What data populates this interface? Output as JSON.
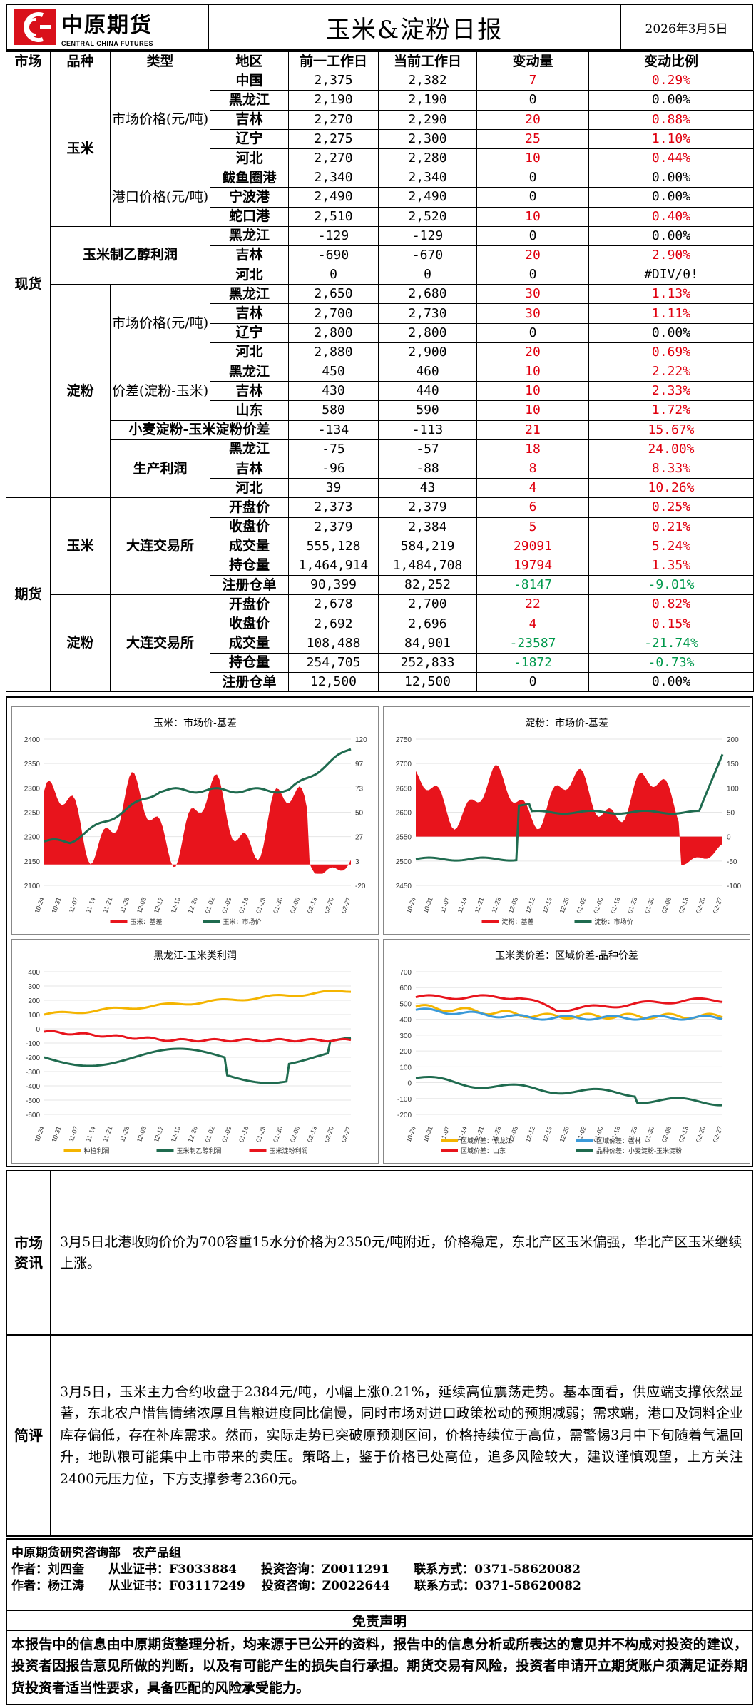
{
  "header": {
    "logo_cn": "中原期货",
    "logo_en": "CENTRAL CHINA FUTURES",
    "title": "玉米&淀粉日报",
    "date": "2026年3月5日"
  },
  "table_headers": [
    "市场",
    "品种",
    "类型",
    "地区",
    "前一工作日",
    "当前工作日",
    "变动量",
    "变动比例"
  ],
  "labels": {
    "spot": "现货",
    "futures": "期货",
    "corn": "玉米",
    "starch": "淀粉",
    "market_price": "市场价格(元/吨)",
    "port_price": "港口价格(元/吨)",
    "ethanol_profit": "玉米制乙醇利润",
    "starch_market_price": "市场价格(元/吨)",
    "price_spread": "价差(淀粉-玉米)",
    "wheat_spread": "小麦淀粉-玉米淀粉价差",
    "production_profit": "生产利润",
    "dce": "大连交易所",
    "dce2": "大连交易所"
  },
  "rows": [
    {
      "region": "中国",
      "prev": "2,375",
      "curr": "2,382",
      "chg": "7",
      "pct": "0.29%",
      "color": "red"
    },
    {
      "region": "黑龙江",
      "prev": "2,190",
      "curr": "2,190",
      "chg": "0",
      "pct": "0.00%",
      "color": "black"
    },
    {
      "region": "吉林",
      "prev": "2,270",
      "curr": "2,290",
      "chg": "20",
      "pct": "0.88%",
      "color": "red"
    },
    {
      "region": "辽宁",
      "prev": "2,275",
      "curr": "2,300",
      "chg": "25",
      "pct": "1.10%",
      "color": "red"
    },
    {
      "region": "河北",
      "prev": "2,270",
      "curr": "2,280",
      "chg": "10",
      "pct": "0.44%",
      "color": "red"
    },
    {
      "region": "鲅鱼圈港",
      "prev": "2,340",
      "curr": "2,340",
      "chg": "0",
      "pct": "0.00%",
      "color": "black"
    },
    {
      "region": "宁波港",
      "prev": "2,490",
      "curr": "2,490",
      "chg": "0",
      "pct": "0.00%",
      "color": "black"
    },
    {
      "region": "蛇口港",
      "prev": "2,510",
      "curr": "2,520",
      "chg": "10",
      "pct": "0.40%",
      "color": "red"
    },
    {
      "region": "黑龙江",
      "prev": "-129",
      "curr": "-129",
      "chg": "0",
      "pct": "0.00%",
      "color": "black"
    },
    {
      "region": "吉林",
      "prev": "-690",
      "curr": "-670",
      "chg": "20",
      "pct": "2.90%",
      "color": "red"
    },
    {
      "region": "河北",
      "prev": "0",
      "curr": "0",
      "chg": "0",
      "pct": "#DIV/0!",
      "color": "black"
    },
    {
      "region": "黑龙江",
      "prev": "2,650",
      "curr": "2,680",
      "chg": "30",
      "pct": "1.13%",
      "color": "red"
    },
    {
      "region": "吉林",
      "prev": "2,700",
      "curr": "2,730",
      "chg": "30",
      "pct": "1.11%",
      "color": "red"
    },
    {
      "region": "辽宁",
      "prev": "2,800",
      "curr": "2,800",
      "chg": "0",
      "pct": "0.00%",
      "color": "black"
    },
    {
      "region": "河北",
      "prev": "2,880",
      "curr": "2,900",
      "chg": "20",
      "pct": "0.69%",
      "color": "red"
    },
    {
      "region": "黑龙江",
      "prev": "450",
      "curr": "460",
      "chg": "10",
      "pct": "2.22%",
      "color": "red"
    },
    {
      "region": "吉林",
      "prev": "430",
      "curr": "440",
      "chg": "10",
      "pct": "2.33%",
      "color": "red"
    },
    {
      "region": "山东",
      "prev": "580",
      "curr": "590",
      "chg": "10",
      "pct": "1.72%",
      "color": "red"
    },
    {
      "region": "",
      "prev": "-134",
      "curr": "-113",
      "chg": "21",
      "pct": "15.67%",
      "color": "red"
    },
    {
      "region": "黑龙江",
      "prev": "-75",
      "curr": "-57",
      "chg": "18",
      "pct": "24.00%",
      "color": "red"
    },
    {
      "region": "吉林",
      "prev": "-96",
      "curr": "-88",
      "chg": "8",
      "pct": "8.33%",
      "color": "red"
    },
    {
      "region": "河北",
      "prev": "39",
      "curr": "43",
      "chg": "4",
      "pct": "10.26%",
      "color": "red"
    },
    {
      "region": "开盘价",
      "prev": "2,373",
      "curr": "2,379",
      "chg": "6",
      "pct": "0.25%",
      "color": "red"
    },
    {
      "region": "收盘价",
      "prev": "2,379",
      "curr": "2,384",
      "chg": "5",
      "pct": "0.21%",
      "color": "red"
    },
    {
      "region": "成交量",
      "prev": "555,128",
      "curr": "584,219",
      "chg": "29091",
      "pct": "5.24%",
      "color": "red"
    },
    {
      "region": "持仓量",
      "prev": "1,464,914",
      "curr": "1,484,708",
      "chg": "19794",
      "pct": "1.35%",
      "color": "red"
    },
    {
      "region": "注册仓单",
      "prev": "90,399",
      "curr": "82,252",
      "chg": "-8147",
      "pct": "-9.01%",
      "color": "green"
    },
    {
      "region": "开盘价",
      "prev": "2,678",
      "curr": "2,700",
      "chg": "22",
      "pct": "0.82%",
      "color": "red"
    },
    {
      "region": "收盘价",
      "prev": "2,692",
      "curr": "2,696",
      "chg": "4",
      "pct": "0.15%",
      "color": "red"
    },
    {
      "region": "成交量",
      "prev": "108,488",
      "curr": "84,901",
      "chg": "-23587",
      "pct": "-21.74%",
      "color": "green"
    },
    {
      "region": "持仓量",
      "prev": "254,705",
      "curr": "252,833",
      "chg": "-1872",
      "pct": "-0.73%",
      "color": "green"
    },
    {
      "region": "注册仓单",
      "prev": "12,500",
      "curr": "12,500",
      "chg": "0",
      "pct": "0.00%",
      "color": "black"
    }
  ],
  "chart_data": [
    {
      "type": "area",
      "title": "玉米：市场价-基差",
      "x": [
        "10-24",
        "10-31",
        "11-07",
        "11-14",
        "11-21",
        "11-28",
        "12-05",
        "12-12",
        "12-19",
        "12-26",
        "01-02",
        "01-09",
        "01-16",
        "01-23",
        "01-30",
        "02-06",
        "02-13",
        "02-20",
        "02-27"
      ],
      "ylim_left": [
        2100,
        2400
      ],
      "ylim_right": [
        -20,
        120
      ],
      "legend": [
        "玉米：基差",
        "玉米：市场价"
      ],
      "legend_position": "bottom",
      "colors": {
        "area": "#e8141c",
        "line": "#1f6b4f"
      }
    },
    {
      "type": "area",
      "title": "淀粉：市场价-基差",
      "x": [
        "10-24",
        "10-31",
        "11-07",
        "11-14",
        "11-21",
        "11-28",
        "12-05",
        "12-12",
        "12-19",
        "12-26",
        "01-02",
        "01-09",
        "01-16",
        "01-23",
        "01-30",
        "02-06",
        "02-13",
        "02-20",
        "02-27"
      ],
      "ylim_left": [
        2450,
        2750
      ],
      "ylim_right": [
        -100,
        200
      ],
      "legend": [
        "淀粉：基差",
        "淀粉：市场价"
      ],
      "legend_position": "bottom",
      "colors": {
        "area": "#e8141c",
        "line": "#1f6b4f"
      }
    },
    {
      "type": "line",
      "title": "黑龙江-玉米类利润",
      "x": [
        "10-24",
        "10-31",
        "11-07",
        "11-14",
        "11-21",
        "11-28",
        "12-05",
        "12-12",
        "12-19",
        "12-26",
        "01-02",
        "01-09",
        "01-16",
        "01-23",
        "01-30",
        "02-06",
        "02-13",
        "02-20",
        "02-27"
      ],
      "ylim": [
        -600,
        400
      ],
      "series": [
        {
          "name": "种植利润",
          "color": "#f4b400"
        },
        {
          "name": "玉米制乙醇利润",
          "color": "#1f6b4f"
        },
        {
          "name": "玉米淀粉利润",
          "color": "#e8141c"
        }
      ],
      "legend_position": "bottom"
    },
    {
      "type": "line",
      "title": "玉米类价差：区域价差-品种价差",
      "x": [
        "10-24",
        "10-31",
        "11-07",
        "11-14",
        "11-21",
        "11-28",
        "12-05",
        "12-12",
        "12-19",
        "12-26",
        "01-02",
        "01-09",
        "01-16",
        "01-23",
        "01-30",
        "02-06",
        "02-13",
        "02-20",
        "02-27"
      ],
      "ylim": [
        -200,
        700
      ],
      "series": [
        {
          "name": "区域价差：黑龙江",
          "color": "#f4b400"
        },
        {
          "name": "区域价差：吉林",
          "color": "#3b9ad9"
        },
        {
          "name": "区域价差：山东",
          "color": "#e8141c"
        },
        {
          "name": "品种价差：小麦淀粉-玉米淀粉",
          "color": "#1f6b4f"
        }
      ],
      "legend_position": "bottom"
    }
  ],
  "market_info": {
    "label": "市场资讯",
    "text": "3月5日北港收购价价为700容重15水分价格为2350元/吨附近，价格稳定，东北产区玉米偏强，华北产区玉米继续上涨。"
  },
  "commentary": {
    "label": "简评",
    "text": "3月5日，玉米主力合约收盘于2384元/吨，小幅上涨0.21%，延续高位震荡走势。基本面看，供应端支撑依然显著，东北农户惜售情绪浓厚且售粮进度同比偏慢，同时市场对进口政策松动的预期减弱；需求端，港口及饲料企业库存偏低，存在补库需求。然而，实际走势已突破原预测区间，价格持续位于高位，需警惕3月中下旬随着气温回升，地趴粮可能集中上市带来的卖压。策略上，鉴于价格已处高位，追多风险较大，建议谨慎观望，上方关注2400元压力位，下方支撑参考2360元。"
  },
  "footer": {
    "dept": "中原期货研究咨询部　农产品组",
    "author1": "作者：刘四奎　　从业证书：F3033884　　投资咨询：Z0011291　　联系方式：0371-58620082",
    "author2": "作者：杨江涛　　从业证书：F03117249　 投资咨询：Z0022644　　联系方式：0371-58620082",
    "disclaimer_title": "免责声明",
    "disclaimer": "本报告中的信息由中原期货整理分析，均来源于已公开的资料，报告中的信息分析或所表达的意见并不构成对投资的建议，投资者因报告意见所做的判断，以及有可能产生的损失自行承担。期货交易有风险，投资者申请开立期货账户须满足证券期货投资者适当性要求，具备匹配的风险承受能力。"
  }
}
